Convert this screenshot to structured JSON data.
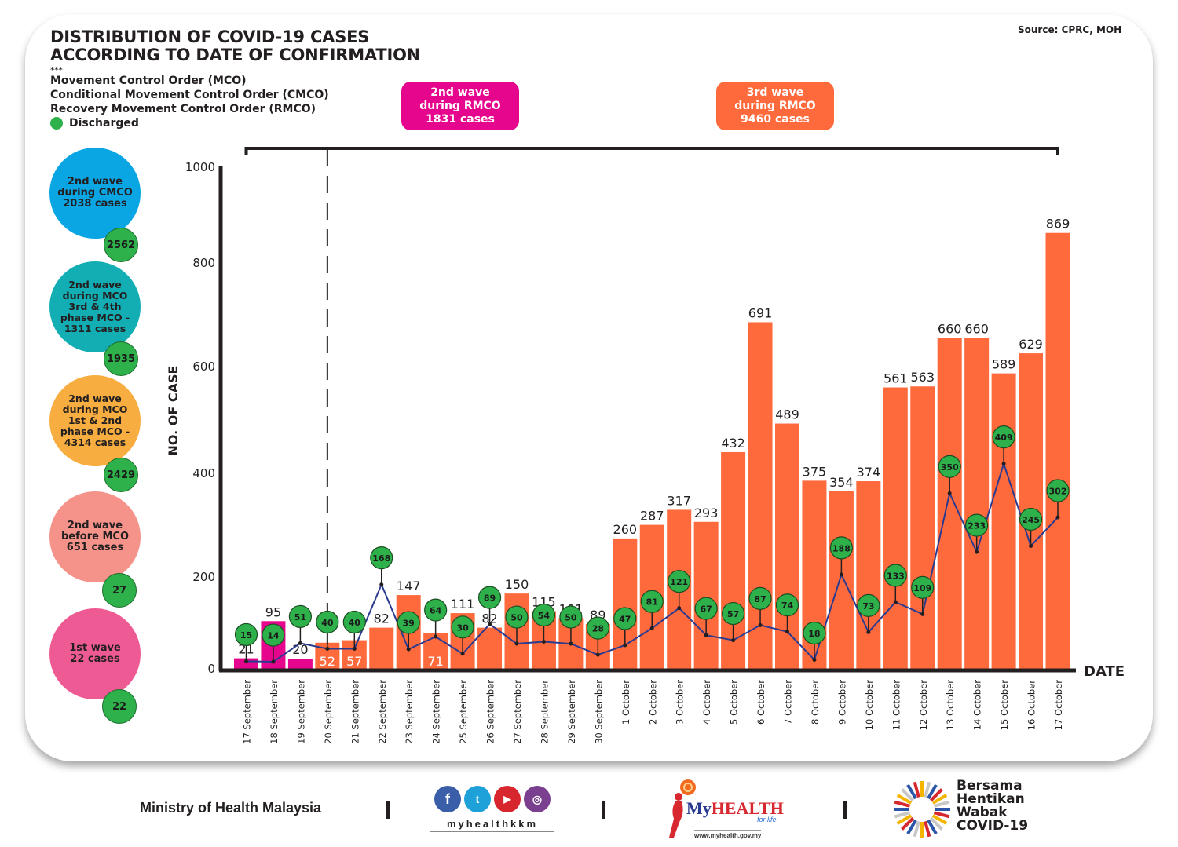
{
  "header": {
    "title_line1": "DISTRIBUTION OF COVID-19 CASES",
    "title_line2": "ACCORDING TO DATE OF CONFIRMATION",
    "source": "Source: CPRC, MOH"
  },
  "legend": {
    "stars": "***",
    "items": [
      "Movement Control Order (MCO)",
      "Conditional Movement Control Order (CMCO)",
      "Recovery Movement Control Order (RMCO)"
    ],
    "discharged_label": "Discharged",
    "discharged_color": "#2eb04a"
  },
  "wave_boxes": [
    {
      "text": "2nd wave\nduring RMCO\n1831 cases",
      "color": "#e6068d"
    },
    {
      "text": "3rd wave\nduring RMCO\n9460 cases",
      "color": "#ff6a3d"
    }
  ],
  "wave_bubbles": [
    {
      "text": "2nd wave\nduring CMCO\n2038 cases",
      "color": "#0aa6e4",
      "discharged": "2562"
    },
    {
      "text": "2nd wave\nduring MCO\n3rd & 4th\nphase MCO -\n1311 cases",
      "color": "#12aeb4",
      "discharged": "1935"
    },
    {
      "text": "2nd wave\nduring MCO\n1st & 2nd\nphase MCO -\n4314 cases",
      "color": "#f7ad3f",
      "discharged": "2429"
    },
    {
      "text": "2nd wave\nbefore MCO\n651 cases",
      "color": "#f5938a",
      "discharged": "27"
    },
    {
      "text": "1st wave\n22 cases",
      "color": "#ee5a93",
      "discharged": "22"
    }
  ],
  "chart_data": {
    "type": "bar",
    "title": "DISTRIBUTION OF COVID-19 CASES ACCORDING TO DATE OF CONFIRMATION",
    "xlabel": "DATE",
    "ylabel": "NO. OF CASE",
    "ylim": [
      0,
      1000
    ],
    "yticks": [
      0,
      200,
      400,
      600,
      800,
      1000
    ],
    "grid": false,
    "categories": [
      "17 September",
      "18 September",
      "19 September",
      "20 September",
      "21 September",
      "22 September",
      "23 September",
      "24 September",
      "25 September",
      "26 September",
      "27 September",
      "28 September",
      "29 September",
      "30 September",
      "1 October",
      "2 October",
      "3 October",
      "4 October",
      "5 October",
      "6 October",
      "7 October",
      "8 October",
      "9 October",
      "10 October",
      "11 October",
      "12 October",
      "13 October",
      "14 October",
      "15 October",
      "16 October",
      "17 October"
    ],
    "series": [
      {
        "name": "New cases",
        "type": "bar",
        "values": [
          21,
          95,
          20,
          52,
          57,
          82,
          147,
          71,
          111,
          82,
          150,
          115,
          101,
          89,
          260,
          287,
          317,
          293,
          432,
          691,
          489,
          375,
          354,
          374,
          561,
          563,
          660,
          660,
          589,
          629,
          869
        ]
      },
      {
        "name": "Discharged",
        "type": "line",
        "color": "#2a3a8f",
        "values": [
          15,
          14,
          51,
          40,
          40,
          168,
          39,
          64,
          30,
          89,
          50,
          54,
          50,
          28,
          47,
          81,
          121,
          67,
          57,
          87,
          74,
          18,
          188,
          73,
          133,
          109,
          350,
          233,
          409,
          245,
          302
        ]
      }
    ],
    "bar_colors": {
      "2nd wave during RMCO": "#e6068d",
      "3rd wave during RMCO": "#ff6a3d"
    },
    "wave_split_after": "19 September",
    "annotations": [
      "2nd wave during RMCO 1831 cases",
      "3rd wave during RMCO 9460 cases"
    ]
  },
  "footer": {
    "ministry": "Ministry of Health Malaysia",
    "social_handle": "myhealthkkm",
    "social_icons": [
      "facebook-icon",
      "twitter-icon",
      "youtube-icon",
      "instagram-icon"
    ],
    "myhealth_brand_my": "My",
    "myhealth_brand_health": "HEALTH",
    "myhealth_tag": "for life",
    "myhealth_url": "www.myhealth.gov.my",
    "campaign": "Bersama\nHentikan\nWabak\nCOVID-19"
  }
}
